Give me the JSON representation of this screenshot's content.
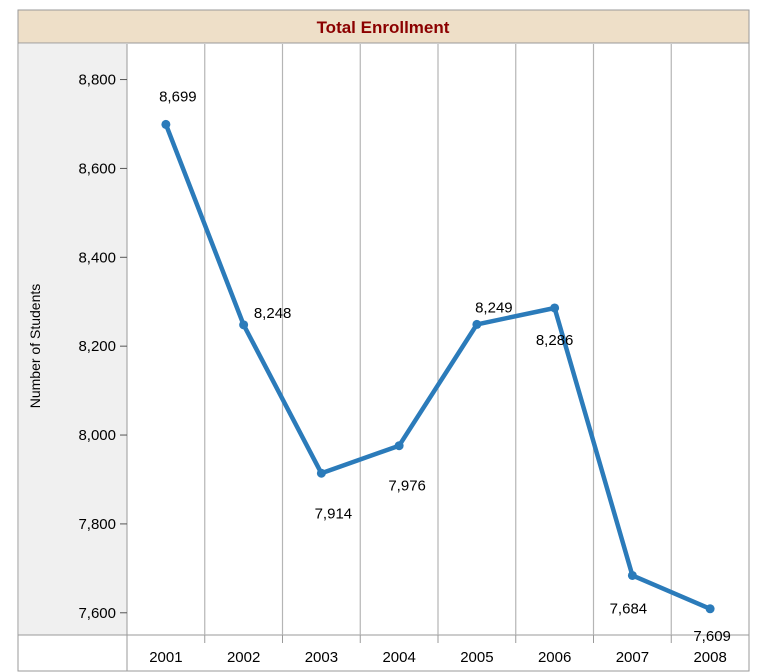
{
  "chart_data": {
    "type": "line",
    "title": "Total Enrollment",
    "xlabel": "",
    "ylabel": "Number of Students",
    "categories": [
      "2001",
      "2002",
      "2003",
      "2004",
      "2005",
      "2006",
      "2007",
      "2008"
    ],
    "series": [
      {
        "values": [
          8699,
          8248,
          7914,
          7976,
          8249,
          8286,
          7684,
          7609
        ]
      }
    ],
    "data_labels": [
      "8,699",
      "8,248",
      "7,914",
      "7,976",
      "8,249",
      "8,286",
      "7,684",
      "7,609"
    ],
    "yticks": [
      7600,
      7800,
      8000,
      8200,
      8400,
      8600,
      8800
    ],
    "ytick_labels": [
      "7,600",
      "7,800",
      "8,000",
      "8,200",
      "8,400",
      "8,600",
      "8,800"
    ],
    "ylim": [
      7550,
      8880
    ],
    "grid": "vertical",
    "legend": "none",
    "colors": {
      "line": "#2b7bba",
      "title_bg": "#eedfc8",
      "title_text": "#8b0000",
      "axis_panel": "#f0f0f0",
      "grid": "#b5b5b5"
    }
  }
}
